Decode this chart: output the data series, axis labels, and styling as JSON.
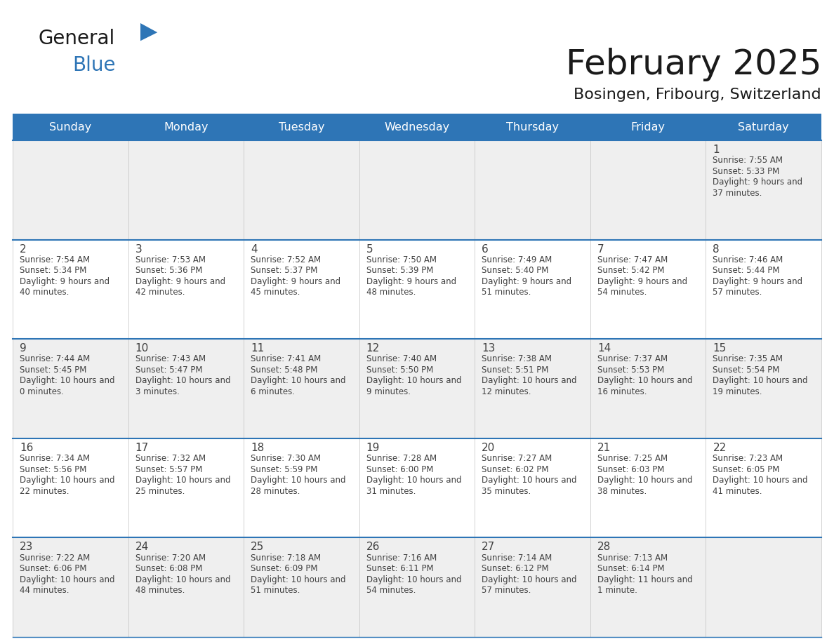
{
  "title": "February 2025",
  "subtitle": "Bosingen, Fribourg, Switzerland",
  "header_bg": "#2E75B6",
  "header_text_color": "#FFFFFF",
  "cell_bg_odd": "#EFEFEF",
  "cell_bg_even": "#FFFFFF",
  "day_headers": [
    "Sunday",
    "Monday",
    "Tuesday",
    "Wednesday",
    "Thursday",
    "Friday",
    "Saturday"
  ],
  "text_color": "#404040",
  "line_color": "#2E75B6",
  "days": [
    {
      "day": 1,
      "col": 6,
      "row": 0,
      "sunrise": "7:55 AM",
      "sunset": "5:33 PM",
      "daylight": "9 hours and 37 minutes."
    },
    {
      "day": 2,
      "col": 0,
      "row": 1,
      "sunrise": "7:54 AM",
      "sunset": "5:34 PM",
      "daylight": "9 hours and 40 minutes."
    },
    {
      "day": 3,
      "col": 1,
      "row": 1,
      "sunrise": "7:53 AM",
      "sunset": "5:36 PM",
      "daylight": "9 hours and 42 minutes."
    },
    {
      "day": 4,
      "col": 2,
      "row": 1,
      "sunrise": "7:52 AM",
      "sunset": "5:37 PM",
      "daylight": "9 hours and 45 minutes."
    },
    {
      "day": 5,
      "col": 3,
      "row": 1,
      "sunrise": "7:50 AM",
      "sunset": "5:39 PM",
      "daylight": "9 hours and 48 minutes."
    },
    {
      "day": 6,
      "col": 4,
      "row": 1,
      "sunrise": "7:49 AM",
      "sunset": "5:40 PM",
      "daylight": "9 hours and 51 minutes."
    },
    {
      "day": 7,
      "col": 5,
      "row": 1,
      "sunrise": "7:47 AM",
      "sunset": "5:42 PM",
      "daylight": "9 hours and 54 minutes."
    },
    {
      "day": 8,
      "col": 6,
      "row": 1,
      "sunrise": "7:46 AM",
      "sunset": "5:44 PM",
      "daylight": "9 hours and 57 minutes."
    },
    {
      "day": 9,
      "col": 0,
      "row": 2,
      "sunrise": "7:44 AM",
      "sunset": "5:45 PM",
      "daylight": "10 hours and 0 minutes."
    },
    {
      "day": 10,
      "col": 1,
      "row": 2,
      "sunrise": "7:43 AM",
      "sunset": "5:47 PM",
      "daylight": "10 hours and 3 minutes."
    },
    {
      "day": 11,
      "col": 2,
      "row": 2,
      "sunrise": "7:41 AM",
      "sunset": "5:48 PM",
      "daylight": "10 hours and 6 minutes."
    },
    {
      "day": 12,
      "col": 3,
      "row": 2,
      "sunrise": "7:40 AM",
      "sunset": "5:50 PM",
      "daylight": "10 hours and 9 minutes."
    },
    {
      "day": 13,
      "col": 4,
      "row": 2,
      "sunrise": "7:38 AM",
      "sunset": "5:51 PM",
      "daylight": "10 hours and 12 minutes."
    },
    {
      "day": 14,
      "col": 5,
      "row": 2,
      "sunrise": "7:37 AM",
      "sunset": "5:53 PM",
      "daylight": "10 hours and 16 minutes."
    },
    {
      "day": 15,
      "col": 6,
      "row": 2,
      "sunrise": "7:35 AM",
      "sunset": "5:54 PM",
      "daylight": "10 hours and 19 minutes."
    },
    {
      "day": 16,
      "col": 0,
      "row": 3,
      "sunrise": "7:34 AM",
      "sunset": "5:56 PM",
      "daylight": "10 hours and 22 minutes."
    },
    {
      "day": 17,
      "col": 1,
      "row": 3,
      "sunrise": "7:32 AM",
      "sunset": "5:57 PM",
      "daylight": "10 hours and 25 minutes."
    },
    {
      "day": 18,
      "col": 2,
      "row": 3,
      "sunrise": "7:30 AM",
      "sunset": "5:59 PM",
      "daylight": "10 hours and 28 minutes."
    },
    {
      "day": 19,
      "col": 3,
      "row": 3,
      "sunrise": "7:28 AM",
      "sunset": "6:00 PM",
      "daylight": "10 hours and 31 minutes."
    },
    {
      "day": 20,
      "col": 4,
      "row": 3,
      "sunrise": "7:27 AM",
      "sunset": "6:02 PM",
      "daylight": "10 hours and 35 minutes."
    },
    {
      "day": 21,
      "col": 5,
      "row": 3,
      "sunrise": "7:25 AM",
      "sunset": "6:03 PM",
      "daylight": "10 hours and 38 minutes."
    },
    {
      "day": 22,
      "col": 6,
      "row": 3,
      "sunrise": "7:23 AM",
      "sunset": "6:05 PM",
      "daylight": "10 hours and 41 minutes."
    },
    {
      "day": 23,
      "col": 0,
      "row": 4,
      "sunrise": "7:22 AM",
      "sunset": "6:06 PM",
      "daylight": "10 hours and 44 minutes."
    },
    {
      "day": 24,
      "col": 1,
      "row": 4,
      "sunrise": "7:20 AM",
      "sunset": "6:08 PM",
      "daylight": "10 hours and 48 minutes."
    },
    {
      "day": 25,
      "col": 2,
      "row": 4,
      "sunrise": "7:18 AM",
      "sunset": "6:09 PM",
      "daylight": "10 hours and 51 minutes."
    },
    {
      "day": 26,
      "col": 3,
      "row": 4,
      "sunrise": "7:16 AM",
      "sunset": "6:11 PM",
      "daylight": "10 hours and 54 minutes."
    },
    {
      "day": 27,
      "col": 4,
      "row": 4,
      "sunrise": "7:14 AM",
      "sunset": "6:12 PM",
      "daylight": "10 hours and 57 minutes."
    },
    {
      "day": 28,
      "col": 5,
      "row": 4,
      "sunrise": "7:13 AM",
      "sunset": "6:14 PM",
      "daylight": "11 hours and 1 minute."
    }
  ],
  "logo_text1": "General",
  "logo_text2": "Blue",
  "logo_color1": "#1a1a1a",
  "logo_color2": "#2E75B6",
  "fig_width": 11.88,
  "fig_height": 9.18,
  "dpi": 100
}
